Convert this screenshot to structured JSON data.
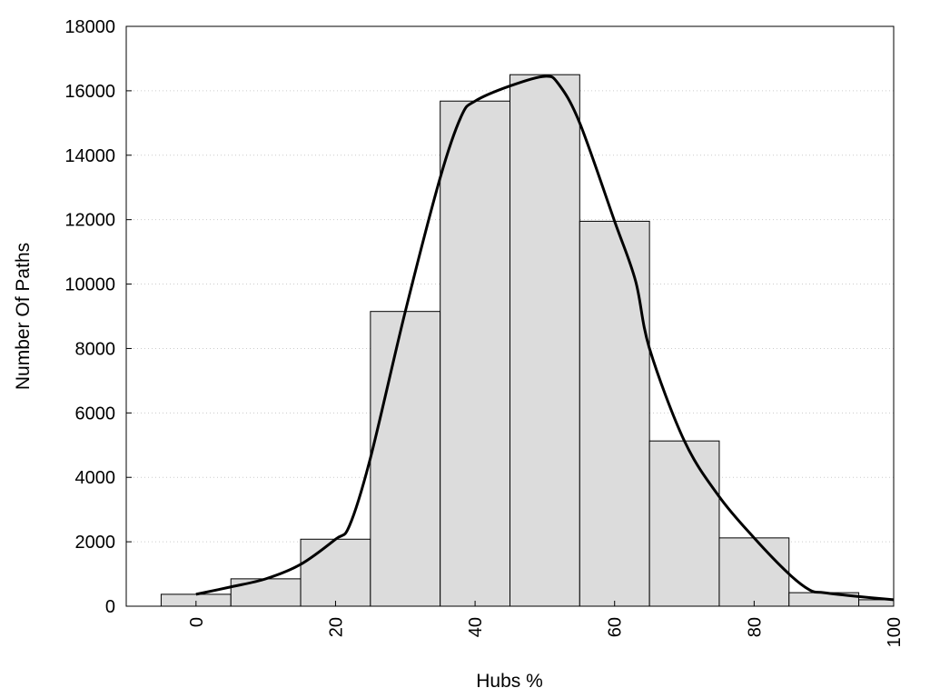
{
  "chart_data": {
    "type": "bar",
    "title": "",
    "xlabel": "Hubs %",
    "ylabel": "Number Of Paths",
    "xlim": [
      -10,
      100
    ],
    "ylim": [
      0,
      18000
    ],
    "x_ticks": [
      "0",
      "20",
      "40",
      "60",
      "80",
      "100"
    ],
    "x_tick_values": [
      0,
      20,
      40,
      60,
      80,
      100
    ],
    "y_ticks": [
      "0",
      "2000",
      "4000",
      "6000",
      "8000",
      "10000",
      "12000",
      "14000",
      "16000",
      "18000"
    ],
    "y_tick_values": [
      0,
      2000,
      4000,
      6000,
      8000,
      10000,
      12000,
      14000,
      16000,
      18000
    ],
    "grid": "horizontal dotted",
    "bin_width": 10,
    "bins": [
      {
        "x": 0,
        "value": 370
      },
      {
        "x": 10,
        "value": 850
      },
      {
        "x": 20,
        "value": 2080
      },
      {
        "x": 30,
        "value": 9150
      },
      {
        "x": 40,
        "value": 15680
      },
      {
        "x": 50,
        "value": 16500
      },
      {
        "x": 60,
        "value": 11950
      },
      {
        "x": 70,
        "value": 5130
      },
      {
        "x": 80,
        "value": 2120
      },
      {
        "x": 90,
        "value": 420
      },
      {
        "x": 100,
        "value": 200
      }
    ],
    "curve": {
      "type": "smoothed line",
      "points": [
        [
          0,
          370
        ],
        [
          5,
          600
        ],
        [
          10,
          850
        ],
        [
          15,
          1300
        ],
        [
          20,
          2080
        ],
        [
          22,
          2500
        ],
        [
          25,
          4600
        ],
        [
          30,
          9150
        ],
        [
          35,
          13300
        ],
        [
          38,
          15200
        ],
        [
          40,
          15680
        ],
        [
          45,
          16150
        ],
        [
          50,
          16450
        ],
        [
          52,
          16200
        ],
        [
          55,
          15000
        ],
        [
          60,
          11950
        ],
        [
          63,
          10100
        ],
        [
          65,
          8000
        ],
        [
          70,
          5130
        ],
        [
          75,
          3400
        ],
        [
          80,
          2120
        ],
        [
          85,
          1000
        ],
        [
          88,
          500
        ],
        [
          90,
          420
        ],
        [
          95,
          300
        ],
        [
          100,
          200
        ]
      ]
    },
    "colors": {
      "bar_fill": "#dcdcdc",
      "bar_stroke": "#000000",
      "curve": "#000000",
      "grid": "#cccccc"
    }
  }
}
